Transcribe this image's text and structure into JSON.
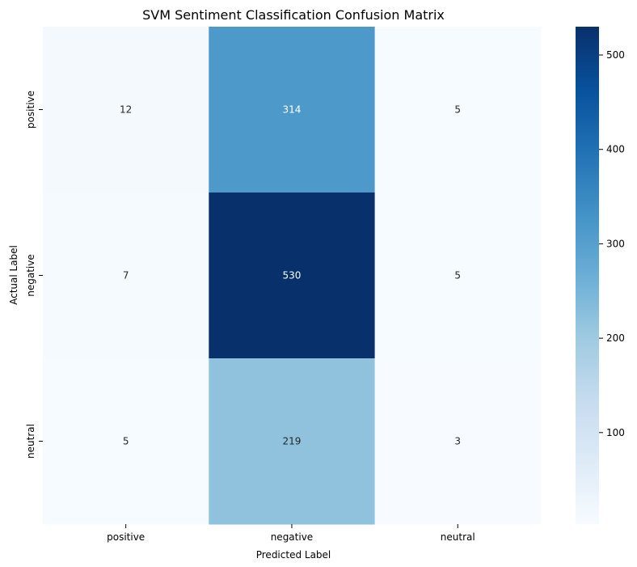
{
  "chart_data": {
    "type": "heatmap",
    "title": "SVM Sentiment Classification Confusion Matrix",
    "xlabel": "Predicted Label",
    "ylabel": "Actual Label",
    "x_categories": [
      "positive",
      "negative",
      "neutral"
    ],
    "y_categories": [
      "positive",
      "negative",
      "neutral"
    ],
    "values": [
      [
        12,
        314,
        5
      ],
      [
        7,
        530,
        5
      ],
      [
        5,
        219,
        3
      ]
    ],
    "colormap": "Blues",
    "color_range": [
      3,
      530
    ],
    "colorbar_ticks": [
      100,
      200,
      300,
      400,
      500
    ],
    "annotated": true,
    "grid": false
  }
}
